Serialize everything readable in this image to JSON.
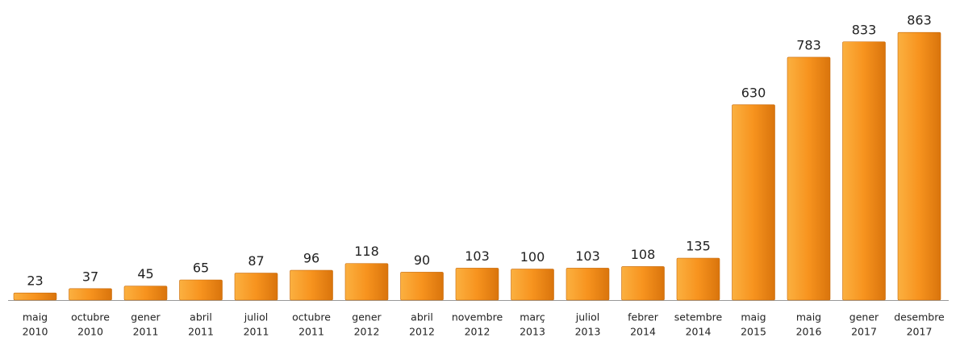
{
  "chart_data": {
    "type": "bar",
    "categories": [
      [
        "maig",
        "2010"
      ],
      [
        "octubre",
        "2010"
      ],
      [
        "gener",
        "2011"
      ],
      [
        "abril",
        "2011"
      ],
      [
        "juliol",
        "2011"
      ],
      [
        "octubre",
        "2011"
      ],
      [
        "gener",
        "2012"
      ],
      [
        "abril",
        "2012"
      ],
      [
        "novembre",
        "2012"
      ],
      [
        "març",
        "2013"
      ],
      [
        "juliol",
        "2013"
      ],
      [
        "febrer",
        "2014"
      ],
      [
        "setembre",
        "2014"
      ],
      [
        "maig",
        "2015"
      ],
      [
        "maig",
        "2016"
      ],
      [
        "gener",
        "2017"
      ],
      [
        "desembre",
        "2017"
      ]
    ],
    "values": [
      23,
      37,
      45,
      65,
      87,
      96,
      118,
      90,
      103,
      100,
      103,
      108,
      135,
      630,
      783,
      833,
      863
    ],
    "color": "#f39322",
    "ylim": [
      0,
      900
    ]
  }
}
